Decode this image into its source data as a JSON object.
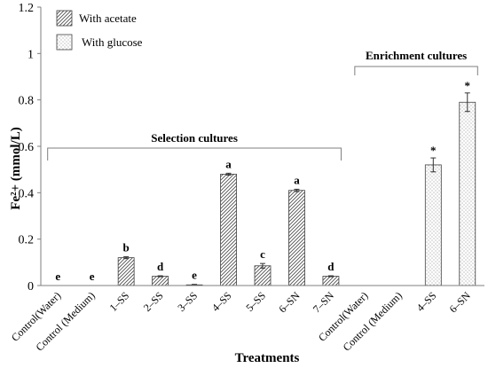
{
  "chart_data": {
    "type": "bar",
    "ylabel": "Fe²+ (mmol/L)",
    "xlabel": "Treatments",
    "ylim": [
      0,
      1.2
    ],
    "yticks": [
      "0",
      "0.2",
      "0.4",
      "0.6",
      "0.8",
      "1",
      "1.2"
    ],
    "grid": false,
    "legend_position": "top-left",
    "categories": [
      "Control(Water)",
      "Control (Medium)",
      "1–SS",
      "2–SS",
      "3–SS",
      "4–SS",
      "5–SS",
      "6–SN",
      "7–SN",
      "Control(Water)",
      "Control (Medium)",
      "4–SS",
      "6–SN"
    ],
    "series": [
      {
        "name": "With acetate",
        "pattern": "diagonal-hatch",
        "values": [
          0,
          0,
          0.12,
          0.04,
          0.003,
          0.48,
          0.085,
          0.41,
          0.04,
          null,
          null,
          null,
          null
        ],
        "errors": [
          0,
          0,
          0.004,
          0.002,
          0.002,
          0.004,
          0.01,
          0.005,
          0.002,
          null,
          null,
          null,
          null
        ],
        "labels": [
          "e",
          "e",
          "b",
          "d",
          "e",
          "a",
          "c",
          "a",
          "d",
          "",
          "",
          "",
          ""
        ]
      },
      {
        "name": "With glucose",
        "pattern": "dotted",
        "values": [
          null,
          null,
          null,
          null,
          null,
          null,
          null,
          null,
          null,
          0,
          0,
          0.52,
          0.79
        ],
        "errors": [
          null,
          null,
          null,
          null,
          null,
          null,
          null,
          null,
          null,
          0,
          0,
          0.03,
          0.04
        ],
        "labels": [
          "",
          "",
          "",
          "",
          "",
          "",
          "",
          "",
          "",
          "",
          "",
          "*",
          "*"
        ]
      }
    ],
    "groups": [
      {
        "label": "Selection cultures",
        "from": 0,
        "to": 8
      },
      {
        "label": "Enrichment cultures",
        "from": 9,
        "to": 12
      }
    ],
    "colors": {
      "axis": "#7f7f7f",
      "bar_edge": "#404040",
      "text": "#000000"
    }
  }
}
